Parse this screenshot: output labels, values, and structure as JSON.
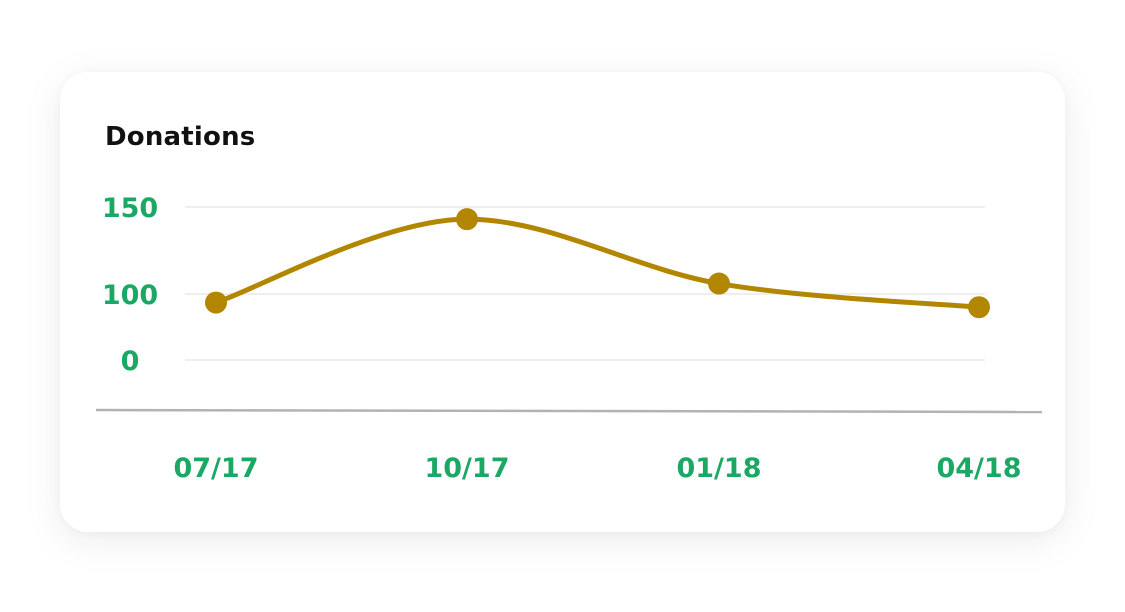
{
  "chart_data": {
    "type": "line",
    "title": "Donations",
    "categories": [
      "07/17",
      "10/17",
      "01/18",
      "04/18"
    ],
    "series": [
      {
        "values": [
          87,
          143,
          106,
          80
        ]
      }
    ],
    "y_ticks": [
      0,
      100,
      150
    ],
    "ylim": [
      0,
      150
    ],
    "grid": true,
    "legend": "none"
  },
  "colors": {
    "line": "#B38600",
    "tick_labels": "#1AA864",
    "gridline": "#EEEEEE",
    "axis": "#B3B3B3",
    "title": "#111111"
  }
}
